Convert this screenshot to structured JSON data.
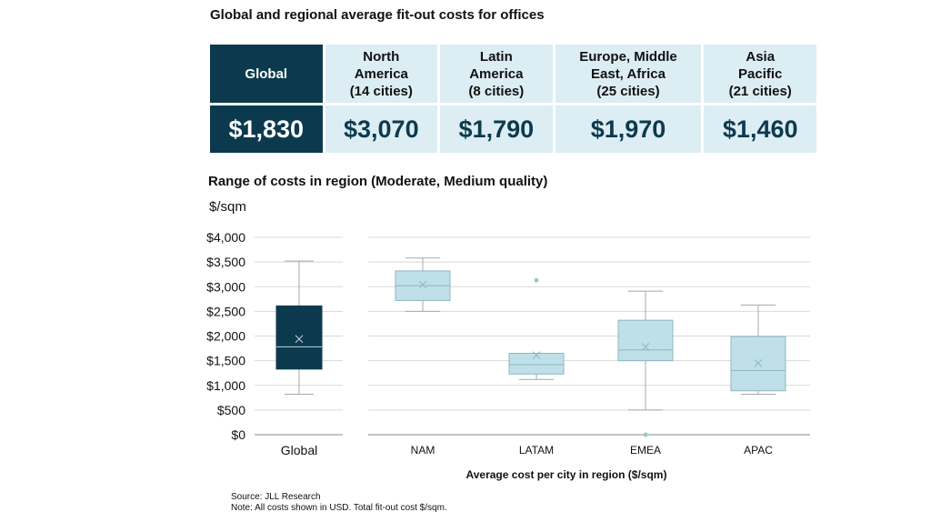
{
  "title": "Global and regional average fit-out costs for offices",
  "summary": {
    "headers": [
      [
        "Global"
      ],
      [
        "North",
        "America",
        "(14 cities)"
      ],
      [
        "Latin",
        "America",
        "(8 cities)"
      ],
      [
        "Europe, Middle",
        "East, Africa",
        "(25 cities)"
      ],
      [
        "Asia",
        "Pacific",
        "(21 cities)"
      ]
    ],
    "values": [
      "$1,830",
      "$3,070",
      "$1,790",
      "$1,970",
      "$1,460"
    ]
  },
  "colors": {
    "dark": "#0b3a4e",
    "light": "#bfe0e8",
    "border": "#8fb6c0"
  },
  "chart_data": {
    "type": "box",
    "title": "Range of costs in region (Moderate, Medium quality)",
    "ylabel": "$/sqm",
    "xlabel": "Average cost per city in region ($/sqm)",
    "ylim": [
      0,
      4000
    ],
    "yticks": [
      0,
      500,
      1000,
      1500,
      2000,
      2500,
      3000,
      3500,
      4000
    ],
    "ytick_labels": [
      "$0",
      "$500",
      "$1,000",
      "$1,500",
      "$2,000",
      "$2,500",
      "$3,000",
      "$3,500",
      "$4,000"
    ],
    "grid": true,
    "boxes": [
      {
        "category": "Global",
        "min": 820,
        "q1": 1330,
        "median": 1780,
        "q3": 2610,
        "max": 3520,
        "mean": 1940,
        "outliers": []
      },
      {
        "category": "NAM",
        "min": 2500,
        "q1": 2720,
        "median": 3020,
        "q3": 3320,
        "max": 3580,
        "mean": 3040,
        "outliers": []
      },
      {
        "category": "LATAM",
        "min": 1120,
        "q1": 1230,
        "median": 1420,
        "q3": 1650,
        "max": 1650,
        "mean": 1610,
        "outliers": [
          3130
        ]
      },
      {
        "category": "EMEA",
        "min": 500,
        "q1": 1500,
        "median": 1720,
        "q3": 2320,
        "max": 2910,
        "mean": 1780,
        "outliers": [
          0
        ]
      },
      {
        "category": "APAC",
        "min": 820,
        "q1": 890,
        "median": 1300,
        "q3": 1990,
        "max": 2630,
        "mean": 1450,
        "outliers": []
      }
    ]
  },
  "source_lines": [
    "Source: JLL Research",
    "Note: All costs shown in USD. Total fit-out cost $/sqm."
  ]
}
